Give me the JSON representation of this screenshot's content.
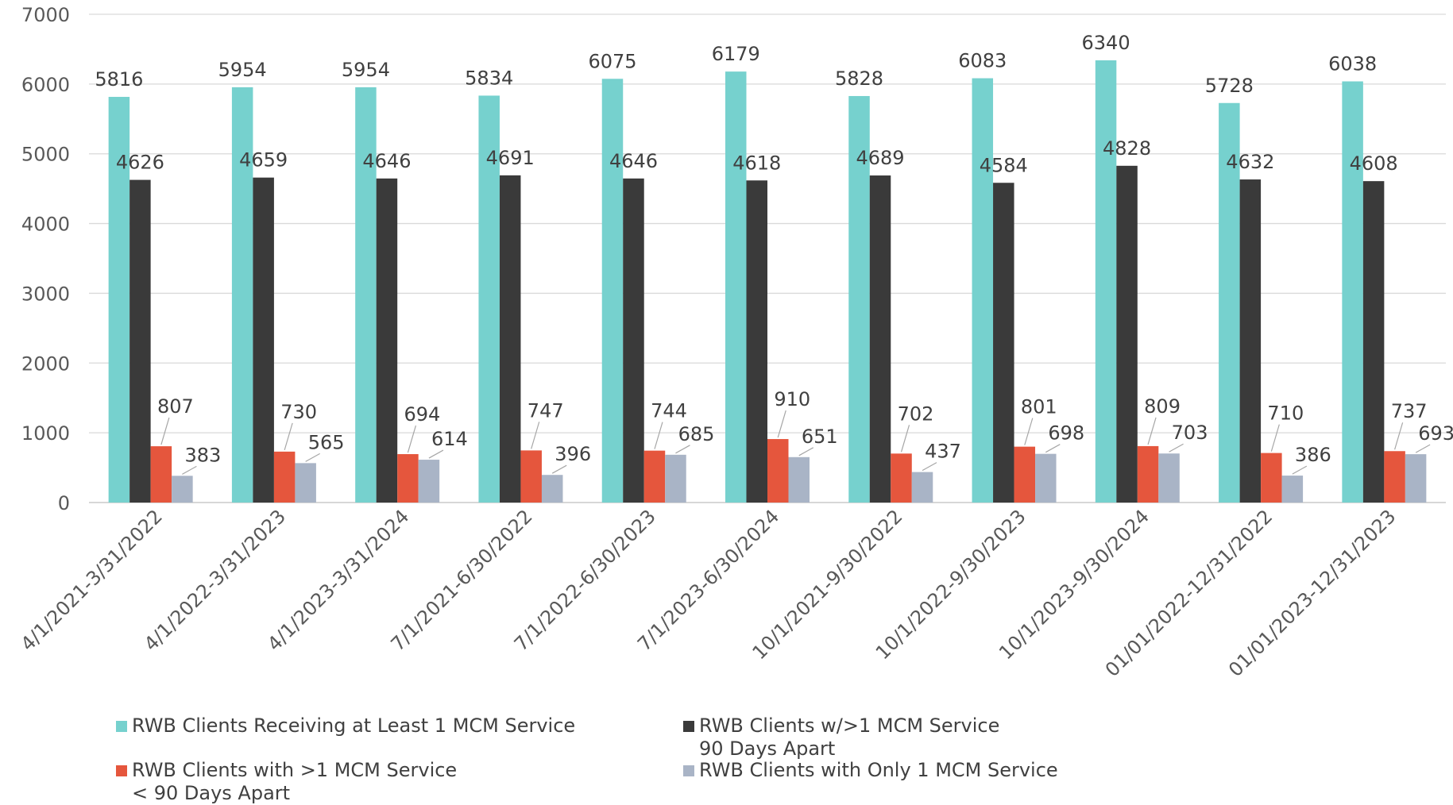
{
  "chart_data": {
    "type": "bar",
    "categories": [
      "4/1/2021-3/31/2022",
      "4/1/2022-3/31/2023",
      "4/1/2023-3/31/2024",
      "7/1/2021-6/30/2022",
      "7/1/2022-6/30/2023",
      "7/1/2023-6/30/2024",
      "10/1/2021-9/30/2022",
      "10/1/2022-9/30/2023",
      "10/1/2023-9/30/2024",
      "01/01/2022-12/31/2022",
      "01/01/2023-12/31/2023"
    ],
    "series": [
      {
        "name": "RWB Clients Receiving at Least 1 MCM Service",
        "color": "#76D1CE",
        "values": [
          5816,
          5954,
          5954,
          5834,
          6075,
          6179,
          5828,
          6083,
          6340,
          5728,
          6038
        ]
      },
      {
        "name": "RWB Clients w/>1 MCM Service\n90 Days Apart",
        "color": "#3A3A3A",
        "values": [
          4626,
          4659,
          4646,
          4691,
          4646,
          4618,
          4689,
          4584,
          4828,
          4632,
          4608
        ]
      },
      {
        "name": "RWB Clients with >1 MCM Service\n< 90 Days Apart",
        "color": "#E5563D",
        "values": [
          807,
          730,
          694,
          747,
          744,
          910,
          702,
          801,
          809,
          710,
          737
        ]
      },
      {
        "name": "RWB Clients with Only 1 MCM Service",
        "color": "#A9B4C6",
        "values": [
          383,
          565,
          614,
          396,
          685,
          651,
          437,
          698,
          703,
          386,
          693
        ]
      }
    ],
    "ylim": [
      0,
      7000
    ],
    "yticks": [
      0,
      1000,
      2000,
      3000,
      4000,
      5000,
      6000,
      7000
    ],
    "grid": true,
    "legend_position": "bottom",
    "title": "",
    "xlabel": "",
    "ylabel": ""
  }
}
